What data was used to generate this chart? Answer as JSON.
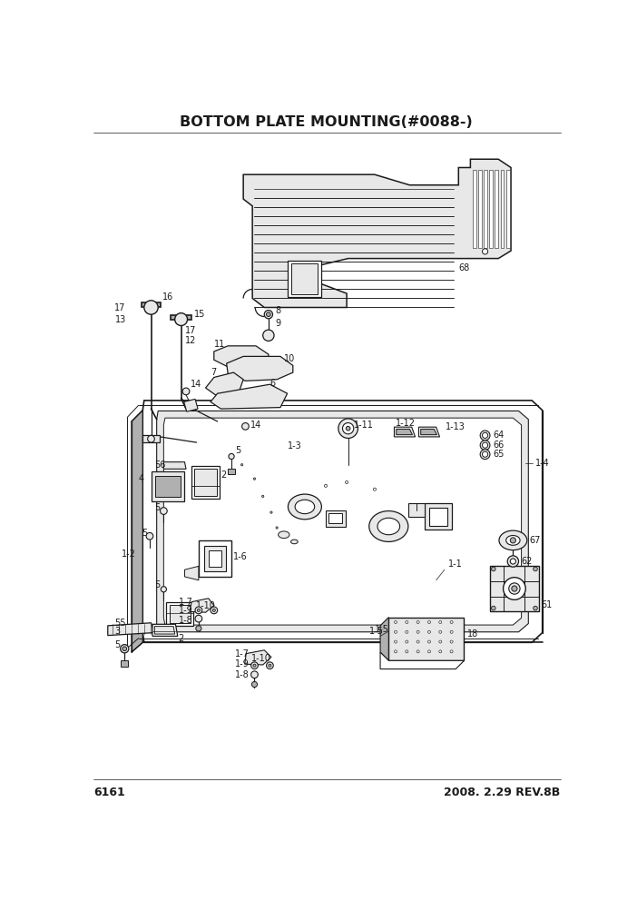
{
  "title": "BOTTOM PLATE MOUNTING(#0088-)",
  "page_num": "6161",
  "revision": "2008. 2.29 REV.8B",
  "bg_color": "#ffffff",
  "line_color": "#1a1a1a",
  "title_fontsize": 11.5,
  "footer_fontsize": 9,
  "label_fontsize": 7,
  "lw_main": 1.0,
  "lw_thin": 0.6,
  "gray_fill": "#d0d0d0",
  "light_gray": "#e8e8e8",
  "mid_gray": "#b0b0b0"
}
